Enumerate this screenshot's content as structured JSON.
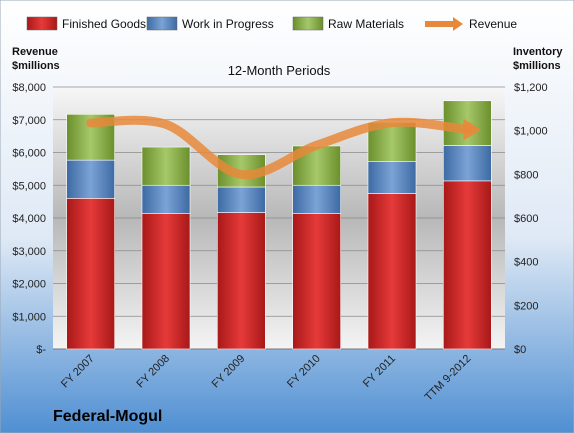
{
  "chart_data": {
    "type": "bar",
    "stacked": true,
    "subtitle": "12-Month Periods",
    "company": "Federal-Mogul",
    "categories": [
      "FY 2007",
      "FY 2008",
      "FY 2009",
      "FY 2010",
      "FY 2011",
      "TTM 9-2012"
    ],
    "left_axis": {
      "title_line1": "Revenue",
      "title_line2": "$millions",
      "range": [
        0,
        8000
      ],
      "ticks": [
        "$-",
        "$1,000",
        "$2,000",
        "$3,000",
        "$4,000",
        "$5,000",
        "$6,000",
        "$7,000",
        "$8,000"
      ]
    },
    "right_axis": {
      "title_line1": "Inventory",
      "title_line2": "$millions",
      "range": [
        0,
        1200
      ],
      "ticks": [
        "$0",
        "$200",
        "$400",
        "$600",
        "$800",
        "$1,000",
        "$1,200"
      ]
    },
    "series": [
      {
        "name": "Finished Goods",
        "axis": "right",
        "color": "#cc2222",
        "values": [
          690,
          620,
          625,
          620,
          712,
          770
        ]
      },
      {
        "name": "Work in Progress",
        "axis": "right",
        "color": "#4f81bd",
        "values": [
          175,
          130,
          117,
          130,
          146,
          162
        ]
      },
      {
        "name": "Raw Materials",
        "axis": "right",
        "color": "#8db046",
        "values": [
          210,
          175,
          148,
          180,
          180,
          205
        ]
      },
      {
        "name": "Revenue",
        "axis": "left",
        "type": "line",
        "color": "#e8883a",
        "values": [
          6900,
          6860,
          5330,
          6220,
          6910,
          6700
        ]
      }
    ],
    "legend_position": "top",
    "grid": true
  }
}
